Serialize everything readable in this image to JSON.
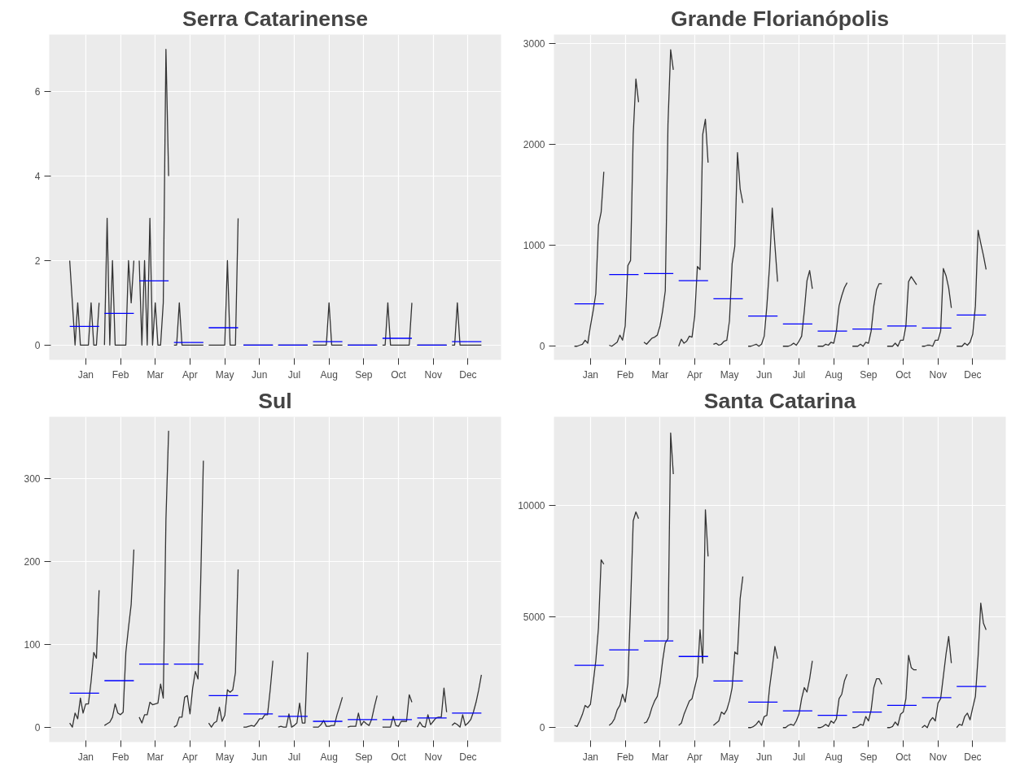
{
  "chart_data": [
    {
      "type": "line",
      "title": "Serra Catarinense",
      "grid": true,
      "ylim": [
        -0.35,
        7.35
      ],
      "yticks": [
        0,
        2,
        4,
        6
      ],
      "categories": [
        null,
        null,
        null,
        null,
        null,
        null,
        "Jan",
        null,
        null,
        null,
        null,
        null,
        null,
        null,
        null,
        null,
        null,
        null,
        null,
        "Feb",
        null,
        null,
        null,
        null,
        null,
        null,
        null,
        null,
        null,
        null,
        null,
        null,
        "Mar",
        null,
        null,
        null,
        null,
        null,
        null,
        null,
        null,
        null,
        null,
        null,
        null,
        "Apr",
        null,
        null,
        null,
        null,
        null,
        null,
        null,
        null,
        null,
        null,
        null,
        null,
        "May",
        null,
        null,
        null,
        null,
        null,
        null,
        null,
        null,
        null,
        null,
        null,
        null,
        "Jun",
        null,
        null,
        null,
        null,
        null,
        null,
        null,
        null,
        null,
        null,
        null,
        null,
        "Jul",
        null,
        null,
        null,
        null,
        null,
        null,
        null,
        null,
        null,
        null,
        null,
        null,
        "Aug",
        null,
        null,
        null,
        null,
        null,
        null,
        null,
        null,
        null,
        null,
        null,
        null,
        "Sep",
        null,
        null,
        null,
        null,
        null,
        null,
        null,
        null,
        null,
        null,
        null,
        null,
        "Oct",
        null,
        null,
        null,
        null,
        null,
        null,
        null,
        null,
        null,
        null,
        null,
        null,
        "Nov",
        null,
        null,
        null,
        null,
        null,
        null,
        null,
        null,
        null,
        null,
        null,
        null,
        "Dec",
        null,
        null,
        null,
        null,
        null,
        null
      ],
      "series": [
        {
          "color": "#333333",
          "values": [
            2,
            1,
            0,
            1,
            0,
            0,
            0,
            0,
            1,
            0,
            0,
            1,
            null,
            0,
            3,
            0,
            2,
            0,
            0,
            0,
            0,
            0,
            2,
            1,
            2,
            null,
            2,
            0,
            2,
            0,
            3,
            0,
            1,
            0,
            0,
            1,
            7,
            4,
            null,
            0,
            0,
            1,
            0,
            0,
            0,
            0,
            0,
            0,
            0,
            0,
            0,
            null,
            0,
            0,
            0,
            0,
            0,
            0,
            0,
            2,
            0,
            0,
            0,
            3,
            null,
            0,
            0,
            0,
            0,
            0,
            0,
            0,
            0,
            0,
            0,
            0,
            0,
            null,
            0,
            0,
            0,
            0,
            0,
            0,
            0,
            0,
            0,
            0,
            0,
            0,
            null,
            0,
            0,
            0,
            0,
            0,
            0,
            1,
            0,
            0,
            0,
            0,
            0,
            null,
            0,
            0,
            0,
            0,
            0,
            0,
            0,
            0,
            0,
            0,
            0,
            0,
            null,
            0,
            0,
            1,
            0,
            0,
            0,
            0,
            0,
            0,
            0,
            0,
            1,
            null,
            0,
            0,
            0,
            0,
            0,
            0,
            0,
            0,
            0,
            0,
            0,
            0,
            null,
            0,
            0,
            1,
            0,
            0,
            0,
            0,
            0,
            0,
            0,
            0,
            0,
            null
          ]
        },
        {
          "color": "#0000ff",
          "values": [
            0.44,
            0.44,
            0.44,
            0.44,
            0.44,
            0.44,
            0.44,
            0.44,
            0.44,
            0.44,
            0.44,
            0.44,
            null,
            0.75,
            0.75,
            0.75,
            0.75,
            0.75,
            0.75,
            0.75,
            0.75,
            0.75,
            0.75,
            0.75,
            0.75,
            null,
            1.52,
            1.52,
            1.52,
            1.52,
            1.52,
            1.52,
            1.52,
            1.52,
            1.52,
            1.52,
            1.52,
            1.52,
            null,
            0.06,
            0.06,
            0.06,
            0.06,
            0.06,
            0.06,
            0.06,
            0.06,
            0.06,
            0.06,
            0.06,
            0.06,
            null,
            0.41,
            0.41,
            0.41,
            0.41,
            0.41,
            0.41,
            0.41,
            0.41,
            0.41,
            0.41,
            0.41,
            0.41,
            null,
            0,
            0,
            0,
            0,
            0,
            0,
            0,
            0,
            0,
            0,
            0,
            0,
            null,
            0,
            0,
            0,
            0,
            0,
            0,
            0,
            0,
            0,
            0,
            0,
            0,
            null,
            0.08,
            0.08,
            0.08,
            0.08,
            0.08,
            0.08,
            0.08,
            0.08,
            0.08,
            0.08,
            0.08,
            0.08,
            null,
            0,
            0,
            0,
            0,
            0,
            0,
            0,
            0,
            0,
            0,
            0,
            0,
            null,
            0.16,
            0.16,
            0.16,
            0.16,
            0.16,
            0.16,
            0.16,
            0.16,
            0.16,
            0.16,
            0.16,
            0.16,
            null,
            0,
            0,
            0,
            0,
            0,
            0,
            0,
            0,
            0,
            0,
            0,
            0,
            null,
            0.08,
            0.08,
            0.08,
            0.08,
            0.08,
            0.08,
            0.08,
            0.08,
            0.08,
            0.08,
            0.08,
            0.08,
            null
          ]
        }
      ]
    },
    {
      "type": "line",
      "title": "Grande Florianópolis",
      "grid": true,
      "ylim": [
        -135,
        3090
      ],
      "yticks": [
        0,
        1000,
        2000,
        3000
      ],
      "categories": [
        null,
        null,
        null,
        null,
        null,
        null,
        "Jan",
        null,
        null,
        null,
        null,
        null,
        null,
        null,
        null,
        null,
        null,
        null,
        null,
        "Feb",
        null,
        null,
        null,
        null,
        null,
        null,
        null,
        null,
        null,
        null,
        null,
        null,
        "Mar",
        null,
        null,
        null,
        null,
        null,
        null,
        null,
        null,
        null,
        null,
        null,
        null,
        "Apr",
        null,
        null,
        null,
        null,
        null,
        null,
        null,
        null,
        null,
        null,
        null,
        null,
        "May",
        null,
        null,
        null,
        null,
        null,
        null,
        null,
        null,
        null,
        null,
        null,
        null,
        "Jun",
        null,
        null,
        null,
        null,
        null,
        null,
        null,
        null,
        null,
        null,
        null,
        null,
        "Jul",
        null,
        null,
        null,
        null,
        null,
        null,
        null,
        null,
        null,
        null,
        null,
        null,
        "Aug",
        null,
        null,
        null,
        null,
        null,
        null,
        null,
        null,
        null,
        null,
        null,
        null,
        "Sep",
        null,
        null,
        null,
        null,
        null,
        null,
        null,
        null,
        null,
        null,
        null,
        null,
        "Oct",
        null,
        null,
        null,
        null,
        null,
        null,
        null,
        null,
        null,
        null,
        null,
        null,
        "Nov",
        null,
        null,
        null,
        null,
        null,
        null,
        null,
        null,
        null,
        null,
        null,
        null,
        "Dec",
        null,
        null,
        null,
        null,
        null,
        null
      ],
      "series": [
        {
          "color": "#333333",
          "values": [
            0,
            0,
            10,
            20,
            60,
            30,
            200,
            350,
            520,
            1200,
            1330,
            1730,
            null,
            10,
            0,
            20,
            40,
            110,
            60,
            200,
            800,
            850,
            2100,
            2650,
            2420,
            null,
            40,
            20,
            50,
            80,
            90,
            110,
            200,
            350,
            550,
            2200,
            2940,
            2740,
            null,
            0,
            70,
            30,
            50,
            100,
            90,
            300,
            790,
            760,
            2100,
            2250,
            1820,
            null,
            20,
            30,
            10,
            20,
            50,
            60,
            250,
            820,
            990,
            1920,
            1560,
            1420,
            null,
            0,
            0,
            10,
            20,
            0,
            20,
            100,
            400,
            800,
            1370,
            1000,
            640,
            null,
            0,
            0,
            0,
            10,
            30,
            10,
            50,
            100,
            350,
            650,
            750,
            570,
            null,
            0,
            0,
            0,
            20,
            10,
            40,
            30,
            150,
            400,
            500,
            580,
            630,
            null,
            0,
            0,
            0,
            20,
            0,
            40,
            30,
            150,
            400,
            560,
            620,
            620,
            null,
            0,
            0,
            0,
            30,
            0,
            60,
            60,
            200,
            640,
            690,
            650,
            610,
            null,
            0,
            0,
            10,
            10,
            0,
            60,
            60,
            150,
            770,
            700,
            580,
            380,
            null,
            0,
            0,
            0,
            30,
            10,
            40,
            120,
            400,
            1150,
            1020,
            900,
            760,
            null
          ]
        },
        {
          "color": "#0000ff",
          "values": [
            420,
            420,
            420,
            420,
            420,
            420,
            420,
            420,
            420,
            420,
            420,
            420,
            null,
            710,
            710,
            710,
            710,
            710,
            710,
            710,
            710,
            710,
            710,
            710,
            710,
            null,
            720,
            720,
            720,
            720,
            720,
            720,
            720,
            720,
            720,
            720,
            720,
            720,
            null,
            650,
            650,
            650,
            650,
            650,
            650,
            650,
            650,
            650,
            650,
            650,
            650,
            null,
            470,
            470,
            470,
            470,
            470,
            470,
            470,
            470,
            470,
            470,
            470,
            470,
            null,
            300,
            300,
            300,
            300,
            300,
            300,
            300,
            300,
            300,
            300,
            300,
            300,
            null,
            220,
            220,
            220,
            220,
            220,
            220,
            220,
            220,
            220,
            220,
            220,
            220,
            null,
            150,
            150,
            150,
            150,
            150,
            150,
            150,
            150,
            150,
            150,
            150,
            150,
            null,
            170,
            170,
            170,
            170,
            170,
            170,
            170,
            170,
            170,
            170,
            170,
            170,
            null,
            200,
            200,
            200,
            200,
            200,
            200,
            200,
            200,
            200,
            200,
            200,
            200,
            null,
            180,
            180,
            180,
            180,
            180,
            180,
            180,
            180,
            180,
            180,
            180,
            180,
            null,
            310,
            310,
            310,
            310,
            310,
            310,
            310,
            310,
            310,
            310,
            310,
            310,
            null
          ]
        }
      ]
    },
    {
      "type": "line",
      "title": "Sul",
      "grid": true,
      "ylim": [
        -18,
        374
      ],
      "yticks": [
        0,
        100,
        200,
        300
      ],
      "categories": [
        null,
        null,
        null,
        null,
        null,
        null,
        "Jan",
        null,
        null,
        null,
        null,
        null,
        null,
        null,
        null,
        null,
        null,
        null,
        null,
        "Feb",
        null,
        null,
        null,
        null,
        null,
        null,
        null,
        null,
        null,
        null,
        null,
        null,
        "Mar",
        null,
        null,
        null,
        null,
        null,
        null,
        null,
        null,
        null,
        null,
        null,
        null,
        "Apr",
        null,
        null,
        null,
        null,
        null,
        null,
        null,
        null,
        null,
        null,
        null,
        null,
        "May",
        null,
        null,
        null,
        null,
        null,
        null,
        null,
        null,
        null,
        null,
        null,
        null,
        "Jun",
        null,
        null,
        null,
        null,
        null,
        null,
        null,
        null,
        null,
        null,
        null,
        null,
        "Jul",
        null,
        null,
        null,
        null,
        null,
        null,
        null,
        null,
        null,
        null,
        null,
        null,
        "Aug",
        null,
        null,
        null,
        null,
        null,
        null,
        null,
        null,
        null,
        null,
        null,
        null,
        "Sep",
        null,
        null,
        null,
        null,
        null,
        null,
        null,
        null,
        null,
        null,
        null,
        null,
        "Oct",
        null,
        null,
        null,
        null,
        null,
        null,
        null,
        null,
        null,
        null,
        null,
        null,
        "Nov",
        null,
        null,
        null,
        null,
        null,
        null,
        null,
        null,
        null,
        null,
        null,
        null,
        "Dec",
        null,
        null,
        null,
        null,
        null,
        null
      ],
      "series": [
        {
          "color": "#333333",
          "values": [
            5,
            0,
            17,
            10,
            35,
            17,
            28,
            28,
            55,
            90,
            83,
            165,
            null,
            2,
            4,
            6,
            12,
            28,
            17,
            15,
            18,
            90,
            120,
            148,
            214,
            null,
            12,
            5,
            15,
            15,
            30,
            27,
            28,
            29,
            52,
            35,
            250,
            357,
            null,
            0,
            2,
            12,
            12,
            36,
            38,
            16,
            47,
            67,
            58,
            175,
            321,
            null,
            5,
            0,
            5,
            7,
            24,
            7,
            14,
            45,
            42,
            45,
            66,
            190,
            null,
            0,
            0,
            1,
            2,
            1,
            5,
            10,
            10,
            15,
            15,
            45,
            80,
            null,
            0,
            1,
            0,
            0,
            16,
            0,
            2,
            5,
            29,
            5,
            5,
            90,
            null,
            0,
            0,
            0,
            3,
            8,
            1,
            1,
            2,
            2,
            15,
            25,
            36,
            null,
            0,
            1,
            1,
            1,
            17,
            2,
            7,
            4,
            2,
            10,
            25,
            38,
            null,
            0,
            0,
            0,
            0,
            13,
            2,
            1,
            7,
            7,
            7,
            39,
            30,
            null,
            0,
            6,
            1,
            0,
            15,
            3,
            7,
            11,
            12,
            12,
            47,
            18,
            null,
            2,
            5,
            3,
            0,
            15,
            2,
            5,
            9,
            18,
            30,
            45,
            63,
            null
          ]
        },
        {
          "color": "#0000ff",
          "values": [
            41,
            41,
            41,
            41,
            41,
            41,
            41,
            41,
            41,
            41,
            41,
            41,
            null,
            56,
            56,
            56,
            56,
            56,
            56,
            56,
            56,
            56,
            56,
            56,
            56,
            null,
            76,
            76,
            76,
            76,
            76,
            76,
            76,
            76,
            76,
            76,
            76,
            76,
            null,
            76,
            76,
            76,
            76,
            76,
            76,
            76,
            76,
            76,
            76,
            76,
            76,
            null,
            38,
            38,
            38,
            38,
            38,
            38,
            38,
            38,
            38,
            38,
            38,
            38,
            null,
            16,
            16,
            16,
            16,
            16,
            16,
            16,
            16,
            16,
            16,
            16,
            16,
            null,
            13,
            13,
            13,
            13,
            13,
            13,
            13,
            13,
            13,
            13,
            13,
            13,
            null,
            7,
            7,
            7,
            7,
            7,
            7,
            7,
            7,
            7,
            7,
            7,
            7,
            null,
            9,
            9,
            9,
            9,
            9,
            9,
            9,
            9,
            9,
            9,
            9,
            9,
            null,
            9,
            9,
            9,
            9,
            9,
            9,
            9,
            9,
            9,
            9,
            9,
            9,
            null,
            11,
            11,
            11,
            11,
            11,
            11,
            11,
            11,
            11,
            11,
            11,
            11,
            null,
            17,
            17,
            17,
            17,
            17,
            17,
            17,
            17,
            17,
            17,
            17,
            17,
            null
          ]
        }
      ]
    },
    {
      "type": "line",
      "title": "Santa Catarina",
      "grid": true,
      "ylim": [
        -650,
        13980
      ],
      "yticks": [
        0,
        5000,
        10000
      ],
      "categories": [
        null,
        null,
        null,
        null,
        null,
        null,
        "Jan",
        null,
        null,
        null,
        null,
        null,
        null,
        null,
        null,
        null,
        null,
        null,
        null,
        "Feb",
        null,
        null,
        null,
        null,
        null,
        null,
        null,
        null,
        null,
        null,
        null,
        null,
        "Mar",
        null,
        null,
        null,
        null,
        null,
        null,
        null,
        null,
        null,
        null,
        null,
        null,
        "Apr",
        null,
        null,
        null,
        null,
        null,
        null,
        null,
        null,
        null,
        null,
        null,
        null,
        "May",
        null,
        null,
        null,
        null,
        null,
        null,
        null,
        null,
        null,
        null,
        null,
        null,
        "Jun",
        null,
        null,
        null,
        null,
        null,
        null,
        null,
        null,
        null,
        null,
        null,
        null,
        "Jul",
        null,
        null,
        null,
        null,
        null,
        null,
        null,
        null,
        null,
        null,
        null,
        null,
        "Aug",
        null,
        null,
        null,
        null,
        null,
        null,
        null,
        null,
        null,
        null,
        null,
        null,
        "Sep",
        null,
        null,
        null,
        null,
        null,
        null,
        null,
        null,
        null,
        null,
        null,
        null,
        "Oct",
        null,
        null,
        null,
        null,
        null,
        null,
        null,
        null,
        null,
        null,
        null,
        null,
        "Nov",
        null,
        null,
        null,
        null,
        null,
        null,
        null,
        null,
        null,
        null,
        null,
        null,
        "Dec",
        null,
        null,
        null,
        null,
        null,
        null
      ],
      "series": [
        {
          "color": "#333333",
          "values": [
            100,
            50,
            300,
            600,
            1000,
            900,
            1050,
            2000,
            3000,
            4500,
            7550,
            7350,
            null,
            100,
            200,
            400,
            800,
            1000,
            1500,
            1150,
            2000,
            5500,
            9300,
            9700,
            9400,
            null,
            200,
            250,
            500,
            900,
            1200,
            1400,
            2000,
            3000,
            3800,
            4000,
            13250,
            11400,
            null,
            100,
            200,
            600,
            900,
            1200,
            1300,
            1800,
            2300,
            4400,
            2900,
            9800,
            7700,
            null,
            100,
            200,
            300,
            700,
            600,
            800,
            1200,
            1800,
            3400,
            3300,
            5800,
            6800,
            null,
            0,
            0,
            50,
            150,
            300,
            100,
            500,
            550,
            1800,
            2700,
            3650,
            3100,
            null,
            0,
            0,
            100,
            150,
            100,
            300,
            600,
            1300,
            1800,
            1600,
            2200,
            3000,
            null,
            0,
            0,
            50,
            150,
            50,
            300,
            200,
            400,
            1300,
            1500,
            2100,
            2400,
            null,
            0,
            0,
            50,
            150,
            100,
            500,
            300,
            800,
            1800,
            2200,
            2200,
            1950,
            null,
            0,
            0,
            50,
            250,
            100,
            600,
            700,
            1300,
            3250,
            2700,
            2600,
            2600,
            null,
            0,
            100,
            0,
            300,
            450,
            300,
            1100,
            1300,
            2300,
            3300,
            4100,
            2900,
            null,
            0,
            150,
            100,
            500,
            650,
            350,
            900,
            1400,
            3200,
            5600,
            4700,
            4400,
            null
          ]
        },
        {
          "color": "#0000ff",
          "values": [
            2800,
            2800,
            2800,
            2800,
            2800,
            2800,
            2800,
            2800,
            2800,
            2800,
            2800,
            2800,
            null,
            3500,
            3500,
            3500,
            3500,
            3500,
            3500,
            3500,
            3500,
            3500,
            3500,
            3500,
            3500,
            null,
            3900,
            3900,
            3900,
            3900,
            3900,
            3900,
            3900,
            3900,
            3900,
            3900,
            3900,
            3900,
            null,
            3200,
            3200,
            3200,
            3200,
            3200,
            3200,
            3200,
            3200,
            3200,
            3200,
            3200,
            3200,
            null,
            2100,
            2100,
            2100,
            2100,
            2100,
            2100,
            2100,
            2100,
            2100,
            2100,
            2100,
            2100,
            null,
            1150,
            1150,
            1150,
            1150,
            1150,
            1150,
            1150,
            1150,
            1150,
            1150,
            1150,
            1150,
            null,
            750,
            750,
            750,
            750,
            750,
            750,
            750,
            750,
            750,
            750,
            750,
            750,
            null,
            550,
            550,
            550,
            550,
            550,
            550,
            550,
            550,
            550,
            550,
            550,
            550,
            null,
            700,
            700,
            700,
            700,
            700,
            700,
            700,
            700,
            700,
            700,
            700,
            700,
            null,
            1000,
            1000,
            1000,
            1000,
            1000,
            1000,
            1000,
            1000,
            1000,
            1000,
            1000,
            1000,
            null,
            1350,
            1350,
            1350,
            1350,
            1350,
            1350,
            1350,
            1350,
            1350,
            1350,
            1350,
            1350,
            null,
            1850,
            1850,
            1850,
            1850,
            1850,
            1850,
            1850,
            1850,
            1850,
            1850,
            1850,
            1850,
            null
          ]
        }
      ]
    }
  ]
}
